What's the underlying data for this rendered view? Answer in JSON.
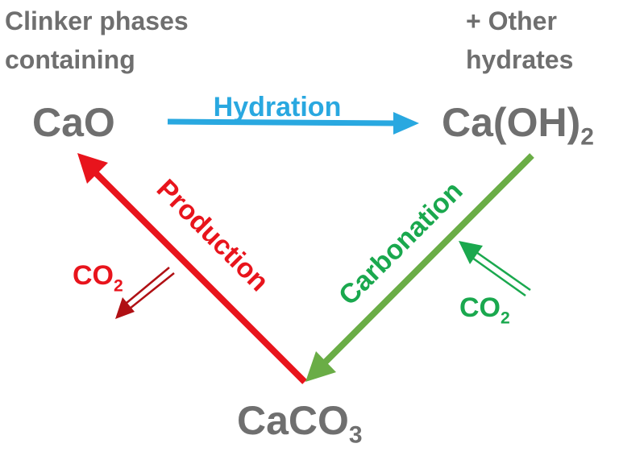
{
  "notes": {
    "left_line1": "Clinker phases",
    "left_line2": "containing",
    "right_line1": "+ Other",
    "right_line2": "hydrates"
  },
  "compounds": {
    "cao": "CaO",
    "caoh2_base": "Ca(OH)",
    "caoh2_sub": "2",
    "caco3_base": "CaCO",
    "caco3_sub": "3"
  },
  "arrows": {
    "hydration": {
      "label": "Hydration",
      "color": "#29a8e0"
    },
    "production": {
      "label": "Production",
      "color": "#e8141c"
    },
    "carbonation": {
      "label": "Carbonation",
      "color": "#6aad46"
    }
  },
  "co2": {
    "left": {
      "base": "CO",
      "sub": "2",
      "color": "#e8141c",
      "arrow_color": "#b01014"
    },
    "right": {
      "base": "CO",
      "sub": "2",
      "color": "#1aa84e",
      "arrow_color": "#1aa84e"
    }
  }
}
